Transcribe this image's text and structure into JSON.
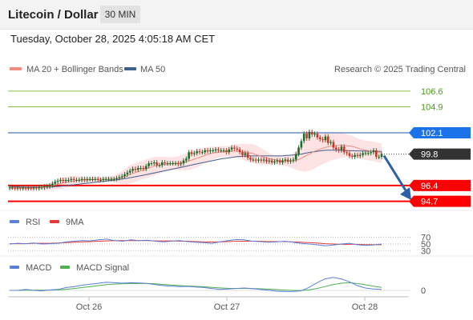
{
  "header": {
    "title": "Litecoin / Dollar",
    "timeframe": "30 MIN"
  },
  "datetime": "Tuesday, October 28, 2025 4:05:18 AM CET",
  "legend": {
    "ma20": "MA 20 + Bollinger Bands",
    "ma50": "MA 50",
    "credit": "Research © 2025 Trading Central"
  },
  "colors": {
    "ma20": "#f28b82",
    "ma50": "#3f5f8f",
    "up": "#1e6b2c",
    "down": "#c0392b",
    "support": "#ff0000",
    "pivot": "#1a73e8",
    "resistance": "#8bc34a",
    "band": "#fde3e3",
    "rsi": "#5b7fd9",
    "nine_ma": "#e53935",
    "macd": "#5b7fd9",
    "macd_signal": "#4caf50"
  },
  "chart_data": {
    "type": "candlestick",
    "ylim": [
      93.8,
      107.8
    ],
    "x_ticks": [
      "Oct 26",
      "Oct 27",
      "Oct 28"
    ],
    "levels": [
      {
        "name": "resistance",
        "value": 106.6,
        "label": "106.6"
      },
      {
        "name": "resistance",
        "value": 104.9,
        "label": "104.9"
      },
      {
        "name": "pivot",
        "value": 102.1,
        "label": "102.1"
      },
      {
        "name": "last",
        "value": 99.8,
        "label": "99.8"
      },
      {
        "name": "support",
        "value": 96.4,
        "label": "96.4"
      },
      {
        "name": "support",
        "value": 94.7,
        "label": "94.7"
      }
    ],
    "close": [
      96.2,
      96.2,
      96.1,
      96.2,
      96.1,
      96.2,
      96.1,
      96.2,
      96.1,
      96.2,
      96.1,
      96.2,
      96.2,
      96.3,
      96.3,
      96.4,
      96.6,
      96.8,
      96.9,
      97.0,
      96.9,
      97.0,
      97.0,
      97.1,
      97.0,
      97.0,
      97.0,
      97.1,
      97.0,
      97.1,
      97.1,
      97.1,
      97.1,
      97.0,
      97.0,
      97.1,
      97.1,
      97.1,
      97.1,
      97.1,
      97.2,
      97.3,
      97.4,
      97.6,
      97.8,
      98.0,
      98.2,
      98.1,
      98.3,
      98.3,
      98.2,
      98.5,
      98.8,
      98.8,
      98.9,
      98.6,
      98.6,
      98.9,
      98.8,
      98.8,
      98.8,
      98.8,
      98.8,
      98.7,
      98.8,
      99.1,
      99.3,
      100.0,
      99.8,
      99.9,
      100.1,
      100.0,
      100.0,
      100.2,
      100.1,
      100.2,
      100.2,
      100.3,
      100.2,
      100.2,
      100.2,
      100.0,
      100.3,
      100.5,
      100.4,
      100.3,
      100.0,
      99.7,
      99.9,
      99.4,
      99.2,
      99.2,
      99.1,
      99.2,
      99.1,
      99.2,
      99.0,
      99.1,
      98.9,
      99.0,
      99.1,
      98.9,
      99.1,
      99.2,
      99.0,
      99.1,
      99.2,
      99.8,
      100.5,
      101.2,
      102.0,
      101.5,
      102.2,
      101.9,
      102.0,
      101.6,
      101.4,
      101.3,
      101.7,
      101.0,
      101.1,
      100.5,
      100.3,
      100.2,
      100.6,
      100.0,
      99.9,
      99.6,
      99.5,
      99.7,
      99.6,
      99.7,
      99.9,
      99.9,
      99.9,
      100.0,
      100.2,
      99.5,
      99.5,
      99.8
    ],
    "ma20": [
      96.1,
      96.1,
      96.1,
      96.1,
      96.1,
      96.1,
      96.1,
      96.1,
      96.1,
      96.1,
      96.15,
      96.15,
      96.2,
      96.2,
      96.25,
      96.3,
      96.4,
      96.45,
      96.55,
      96.6,
      96.7,
      96.75,
      96.8,
      96.85,
      96.9,
      96.95,
      97.0,
      97.0,
      97.0,
      97.0,
      97.02,
      97.04,
      97.05,
      97.06,
      97.06,
      97.07,
      97.08,
      97.08,
      97.1,
      97.12,
      97.15,
      97.2,
      97.25,
      97.35,
      97.45,
      97.6,
      97.7,
      97.8,
      97.9,
      98.0,
      98.1,
      98.2,
      98.3,
      98.4,
      98.5,
      98.55,
      98.6,
      98.65,
      98.7,
      98.72,
      98.75,
      98.77,
      98.8,
      98.82,
      98.85,
      98.9,
      98.95,
      99.05,
      99.15,
      99.25,
      99.35,
      99.45,
      99.55,
      99.65,
      99.75,
      99.85,
      99.9,
      99.95,
      100.0,
      100.02,
      100.05,
      100.08,
      100.1,
      100.12,
      100.13,
      100.12,
      100.1,
      100.05,
      100.0,
      99.95,
      99.9,
      99.85,
      99.75,
      99.65,
      99.55,
      99.45,
      99.38,
      99.3,
      99.24,
      99.18,
      99.14,
      99.1,
      99.08,
      99.06,
      99.05,
      99.05,
      99.06,
      99.12,
      99.2,
      99.35,
      99.5,
      99.65,
      99.8,
      99.95,
      100.1,
      100.22,
      100.32,
      100.42,
      100.52,
      100.58,
      100.64,
      100.68,
      100.7,
      100.72,
      100.73,
      100.72,
      100.7,
      100.67,
      100.62,
      100.55,
      100.45,
      100.35,
      100.28,
      100.22,
      100.18,
      100.12,
      100.08,
      100.02,
      99.95,
      99.92
    ],
    "ma50": [
      96.3,
      96.28,
      96.26,
      96.25,
      96.24,
      96.23,
      96.22,
      96.22,
      96.22,
      96.22,
      96.22,
      96.22,
      96.22,
      96.22,
      96.23,
      96.24,
      96.25,
      96.27,
      96.3,
      96.32,
      96.35,
      96.38,
      96.42,
      96.45,
      96.48,
      96.52,
      96.55,
      96.58,
      96.62,
      96.65,
      96.68,
      96.72,
      96.75,
      96.78,
      96.82,
      96.85,
      96.88,
      96.92,
      96.95,
      96.98,
      97.02,
      97.06,
      97.1,
      97.15,
      97.2,
      97.25,
      97.3,
      97.35,
      97.4,
      97.46,
      97.52,
      97.58,
      97.64,
      97.7,
      97.76,
      97.82,
      97.88,
      97.94,
      98.0,
      98.06,
      98.12,
      98.18,
      98.24,
      98.3,
      98.36,
      98.42,
      98.48,
      98.55,
      98.62,
      98.68,
      98.74,
      98.8,
      98.86,
      98.92,
      98.98,
      99.04,
      99.1,
      99.16,
      99.22,
      99.28,
      99.32,
      99.36,
      99.4,
      99.44,
      99.48,
      99.52,
      99.55,
      99.57,
      99.58,
      99.59,
      99.6,
      99.6,
      99.6,
      99.6,
      99.6,
      99.6,
      99.6,
      99.6,
      99.6,
      99.6,
      99.6,
      99.6,
      99.62,
      99.64,
      99.66,
      99.68,
      99.7,
      99.72,
      99.76,
      99.8,
      99.86,
      99.92,
      99.98,
      100.02,
      100.06,
      100.1,
      100.14,
      100.18,
      100.2,
      100.22,
      100.22,
      100.22,
      100.22,
      100.21,
      100.2,
      100.19,
      100.18,
      100.17,
      100.16,
      100.15,
      100.14,
      100.14,
      100.13,
      100.12,
      100.12,
      100.11,
      100.1,
      100.1,
      100.1,
      100.1
    ],
    "band_width": [
      0.2,
      0.2,
      0.2,
      0.2,
      0.2,
      0.2,
      0.2,
      0.2,
      0.2,
      0.2,
      0.2,
      0.2,
      0.25,
      0.3,
      0.35,
      0.4,
      0.45,
      0.5,
      0.55,
      0.6,
      0.6,
      0.6,
      0.6,
      0.6,
      0.55,
      0.5,
      0.45,
      0.4,
      0.35,
      0.3,
      0.3,
      0.3,
      0.3,
      0.3,
      0.3,
      0.3,
      0.3,
      0.3,
      0.35,
      0.4,
      0.5,
      0.6,
      0.7,
      0.8,
      0.9,
      1.0,
      1.0,
      1.0,
      1.0,
      1.0,
      1.0,
      1.0,
      1.0,
      1.0,
      1.0,
      0.95,
      0.9,
      0.85,
      0.8,
      0.75,
      0.7,
      0.7,
      0.7,
      0.75,
      0.8,
      0.85,
      0.9,
      0.95,
      1.0,
      1.0,
      1.0,
      0.95,
      0.9,
      0.85,
      0.8,
      0.75,
      0.7,
      0.65,
      0.6,
      0.6,
      0.6,
      0.6,
      0.6,
      0.65,
      0.7,
      0.75,
      0.8,
      0.85,
      0.9,
      0.95,
      1.0,
      1.0,
      1.0,
      0.95,
      0.9,
      0.8,
      0.7,
      0.6,
      0.55,
      0.5,
      0.5,
      0.5,
      0.5,
      0.55,
      0.6,
      0.7,
      0.85,
      1.0,
      1.2,
      1.4,
      1.6,
      1.7,
      1.8,
      1.85,
      1.85,
      1.8,
      1.75,
      1.7,
      1.65,
      1.6,
      1.55,
      1.5,
      1.45,
      1.4,
      1.35,
      1.3,
      1.25,
      1.2,
      1.15,
      1.1,
      1.05,
      1.05,
      1.05,
      1.05,
      1.05,
      1.05,
      1.05,
      1.05,
      1.05,
      1.05
    ],
    "rsi": {
      "levels": [
        "70",
        "50",
        "30"
      ],
      "rsi": [
        50,
        52,
        51,
        53,
        50,
        51,
        52,
        56,
        58,
        60,
        59,
        62,
        64,
        60,
        58,
        62,
        60,
        61,
        58,
        56,
        58,
        60,
        57,
        55,
        54,
        52,
        56,
        60,
        63,
        62,
        58,
        57,
        55,
        56,
        58,
        55,
        52,
        50,
        48,
        45,
        47,
        50,
        52,
        48,
        46,
        47,
        50
      ],
      "ma9": [
        51,
        51,
        51,
        52,
        52,
        52,
        53,
        54,
        55,
        56,
        57,
        58,
        59,
        60,
        60,
        60,
        60,
        60,
        59,
        59,
        59,
        58,
        58,
        57,
        56,
        56,
        56,
        57,
        58,
        58,
        58,
        58,
        57,
        57,
        57,
        56,
        55,
        54,
        53,
        51,
        50,
        49,
        49,
        49,
        48,
        48,
        48
      ]
    },
    "macd": {
      "zero_label": "0",
      "macd": [
        0.0,
        0.0,
        0.1,
        0.0,
        -0.05,
        0.05,
        0.1,
        0.3,
        0.4,
        0.55,
        0.65,
        0.75,
        0.85,
        0.8,
        0.75,
        0.8,
        0.78,
        0.72,
        0.6,
        0.5,
        0.45,
        0.4,
        0.42,
        0.35,
        0.3,
        0.2,
        0.1,
        0.15,
        0.2,
        0.25,
        0.18,
        0.1,
        0.02,
        -0.08,
        -0.12,
        -0.1,
        -0.05,
        0.3,
        0.8,
        1.2,
        1.35,
        1.2,
        0.9,
        0.5,
        0.25,
        0.15,
        0.1
      ],
      "signal": [
        0.0,
        0.0,
        0.02,
        0.02,
        0.02,
        0.03,
        0.05,
        0.12,
        0.2,
        0.3,
        0.4,
        0.5,
        0.6,
        0.66,
        0.7,
        0.72,
        0.73,
        0.72,
        0.68,
        0.62,
        0.56,
        0.5,
        0.46,
        0.42,
        0.38,
        0.32,
        0.26,
        0.22,
        0.21,
        0.21,
        0.2,
        0.17,
        0.13,
        0.08,
        0.03,
        0.0,
        -0.01,
        0.05,
        0.2,
        0.4,
        0.6,
        0.75,
        0.8,
        0.72,
        0.58,
        0.44,
        0.32
      ]
    }
  },
  "rsi_legend": {
    "rsi": "RSI",
    "ma9": "9MA"
  },
  "macd_legend": {
    "macd": "MACD",
    "signal": "MACD Signal"
  }
}
